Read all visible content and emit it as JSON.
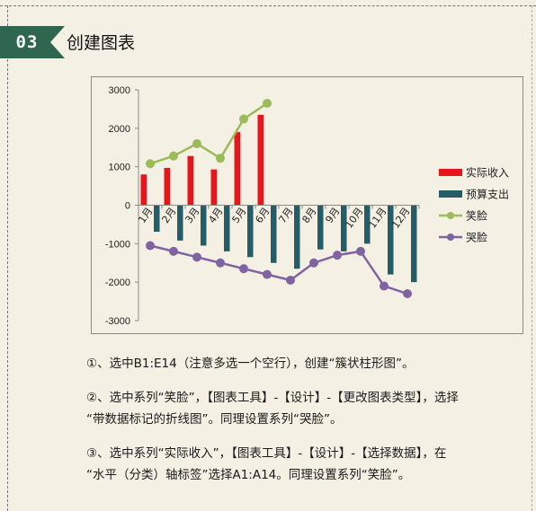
{
  "section": {
    "number": "03",
    "title": "创建图表",
    "banner_color": "#2e6650"
  },
  "chart_data": {
    "type": "bar",
    "categories": [
      "1月",
      "2月",
      "3月",
      "4月",
      "5月",
      "6月",
      "7月",
      "8月",
      "9月",
      "10月",
      "11月",
      "12月"
    ],
    "ylim": [
      -3000,
      3000
    ],
    "yticks": [
      3000,
      2000,
      1000,
      0,
      -1000,
      -2000,
      -3000
    ],
    "series": [
      {
        "name": "实际收入",
        "kind": "bar",
        "color": "#e8161c",
        "values": [
          800,
          970,
          1280,
          930,
          1900,
          2350,
          null,
          null,
          null,
          null,
          null,
          null
        ]
      },
      {
        "name": "预算支出",
        "kind": "bar",
        "color": "#245d68",
        "values": [
          -690,
          -920,
          -1050,
          -1200,
          -1350,
          -1500,
          -1650,
          -1150,
          -1200,
          -1000,
          -1800,
          -2000
        ]
      },
      {
        "name": "笑脸",
        "kind": "line",
        "marker": "circle",
        "color": "#9bbb59",
        "values": [
          1080,
          1280,
          1600,
          1220,
          2240,
          2650,
          null,
          null,
          null,
          null,
          null,
          null
        ]
      },
      {
        "name": "哭脸",
        "kind": "line",
        "marker": "circle",
        "color": "#8064a2",
        "values": [
          -1050,
          -1200,
          -1350,
          -1500,
          -1650,
          -1800,
          -1950,
          -1500,
          -1300,
          -1200,
          -2100,
          -2300
        ]
      }
    ],
    "legend_position": "right",
    "grid": false
  },
  "instructions": [
    {
      "lines": [
        "①、选中B1:E14（注意多选一个空行），创建“簇状柱形图”。"
      ]
    },
    {
      "lines": [
        "②、选中系列“笑脸”，【图表工具】-【设计】-【更改图表类型】，选择",
        "“带数据标记的折线图”。同理设置系列“哭脸”。"
      ]
    },
    {
      "lines": [
        "③、选中系列“实际收入”，【图表工具】-【设计】-【选择数据】，在",
        "“水平（分类）轴标签”选择A1:A14。同理设置系列“笑脸”。"
      ]
    }
  ]
}
